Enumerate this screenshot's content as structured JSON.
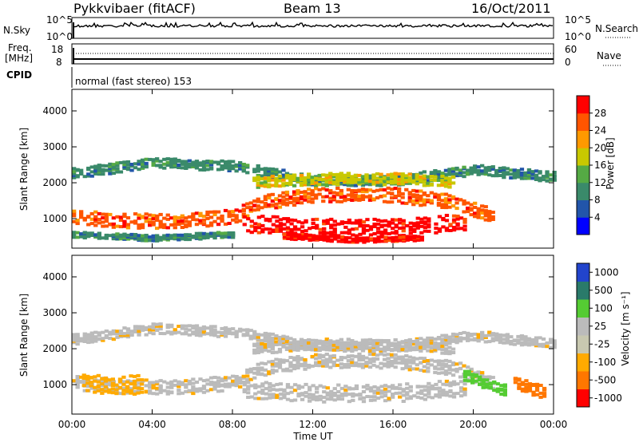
{
  "header": {
    "station": "Pykkvibaer (fitACF)",
    "beam": "Beam 13",
    "date": "16/Oct/2011"
  },
  "strip": {
    "nsky_label": "N.Sky",
    "nsky_ticks": [
      "10^5",
      "10^0"
    ],
    "nsearch_label": "N.Search",
    "nsearch_ticks": [
      "10^5",
      "10^0"
    ],
    "freq_label_1": "Freq.",
    "freq_label_2": "[MHz]",
    "freq_ticks": [
      "18",
      "8"
    ],
    "nave_label": "Nave",
    "nave_ticks": [
      "60",
      "0"
    ],
    "cpid_label": "CPID",
    "mode": "normal (fast stereo) 153"
  },
  "chart_data": [
    {
      "type": "heatmap",
      "title": "",
      "ylabel": "Slant Range [km]",
      "xlabel": "",
      "y_ticks": [
        1000,
        2000,
        3000,
        4000
      ],
      "ylim": [
        180,
        4600
      ],
      "colorbar_label": "Power [dB]",
      "colorbar_ticks": [
        "4",
        "8",
        "12",
        "16",
        "20",
        "24",
        "28"
      ],
      "colorbar_colors": [
        "#0000ff",
        "#2255aa",
        "#3a8a6a",
        "#55aa44",
        "#c8c800",
        "#ff9900",
        "#ff5500",
        "#ff0000"
      ],
      "bands": [
        {
          "t": [
            0,
            4,
            8,
            12,
            16,
            20,
            24
          ],
          "r": [
            2300,
            2600,
            2500,
            2100,
            2100,
            2400,
            2200
          ],
          "w": 140,
          "c": 2
        },
        {
          "t": [
            0,
            2,
            5,
            8,
            9.5,
            12,
            16,
            19,
            20.5,
            21
          ],
          "r": [
            1100,
            1000,
            950,
            1100,
            1500,
            1700,
            1700,
            1500,
            1200,
            1000
          ],
          "w": 200,
          "c": 6
        },
        {
          "t": [
            8.5,
            12,
            16,
            19.5
          ],
          "r": [
            900,
            800,
            800,
            950
          ],
          "w": 240,
          "c": 7
        },
        {
          "t": [
            9,
            12,
            16,
            19
          ],
          "r": [
            2050,
            2150,
            2150,
            2050
          ],
          "w": 160,
          "c": 4
        },
        {
          "t": [
            10.5,
            14,
            17.5
          ],
          "r": [
            550,
            450,
            500
          ],
          "w": 70,
          "c": 7
        },
        {
          "t": [
            0,
            4,
            8
          ],
          "r": [
            600,
            500,
            600
          ],
          "w": 80,
          "c": 2
        }
      ]
    },
    {
      "type": "heatmap",
      "title": "",
      "ylabel": "Slant Range [km]",
      "xlabel": "Time UT",
      "x_ticks": [
        "00:00",
        "04:00",
        "08:00",
        "12:00",
        "16:00",
        "20:00",
        "00:00"
      ],
      "y_ticks": [
        1000,
        2000,
        3000,
        4000
      ],
      "ylim": [
        180,
        4600
      ],
      "colorbar_label": "Velocity [m s⁻¹]",
      "colorbar_ticks": [
        "1000",
        "500",
        "100",
        "25",
        "-25",
        "-100",
        "-500",
        "-1000"
      ],
      "colorbar_colors": [
        "#2244cc",
        "#2a7a6a",
        "#55cc33",
        "#bbbbbb",
        "#c8c8b0",
        "#ffaa00",
        "#ff7700",
        "#ff0000"
      ],
      "bands": [
        {
          "t": [
            0,
            4,
            8,
            12,
            16,
            20,
            24
          ],
          "r": [
            2300,
            2600,
            2500,
            2100,
            2100,
            2400,
            2200
          ],
          "w": 140,
          "c": 3
        },
        {
          "t": [
            0,
            2,
            5,
            8,
            9.5,
            12,
            16,
            19,
            20.5,
            21
          ],
          "r": [
            1100,
            1000,
            950,
            1100,
            1500,
            1700,
            1700,
            1500,
            1200,
            1000
          ],
          "w": 200,
          "c": 3
        },
        {
          "t": [
            8.5,
            12,
            16,
            19.5
          ],
          "r": [
            900,
            800,
            800,
            950
          ],
          "w": 240,
          "c": 3
        },
        {
          "t": [
            9,
            12,
            16,
            19
          ],
          "r": [
            2050,
            2150,
            2150,
            2050
          ],
          "w": 160,
          "c": 3
        },
        {
          "t": [
            0.5,
            2,
            3.5
          ],
          "r": [
            1100,
            1000,
            1050
          ],
          "w": 260,
          "c": 5
        },
        {
          "t": [
            19.5,
            20.5,
            21.5
          ],
          "r": [
            1300,
            1100,
            900
          ],
          "w": 160,
          "c": 2
        },
        {
          "t": [
            22,
            23,
            23.5
          ],
          "r": [
            1100,
            900,
            800
          ],
          "w": 180,
          "c": 6
        }
      ]
    }
  ]
}
